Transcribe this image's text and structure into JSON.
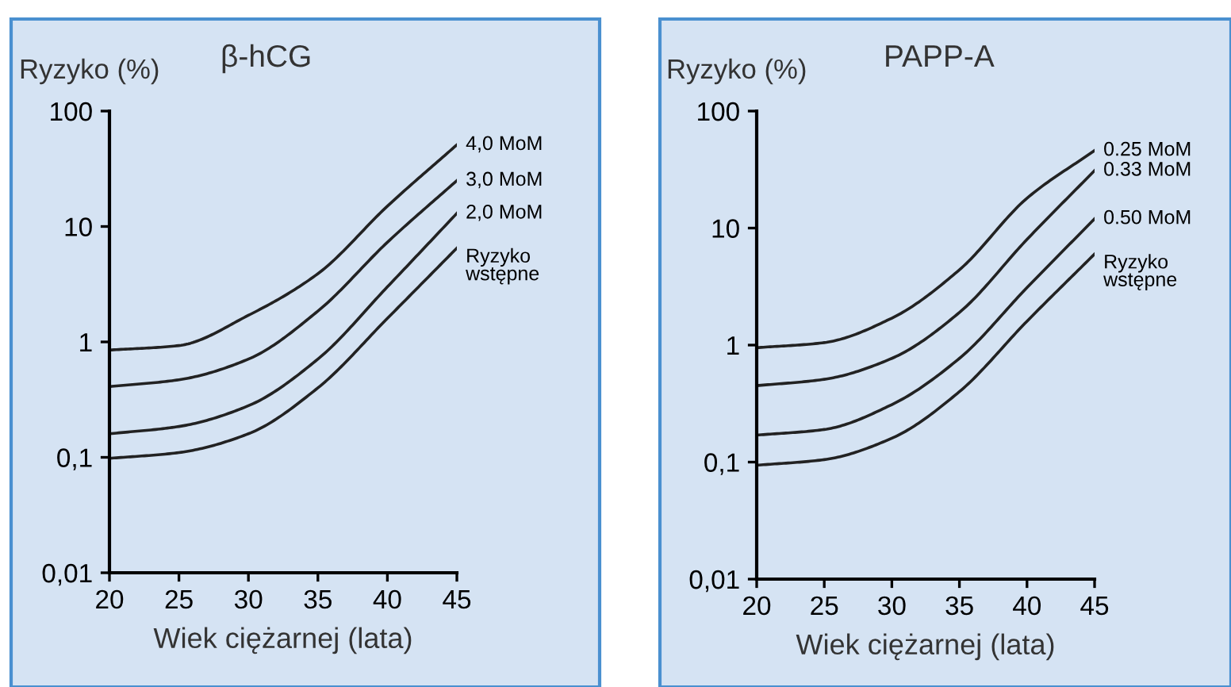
{
  "chart_data": [
    {
      "type": "line",
      "title": "β-hCG",
      "ylabel": "Ryzyko (%)",
      "xlabel": "Wiek ciężarnej (lata)",
      "log": "y",
      "grid": false,
      "xlim": [
        20,
        45
      ],
      "xticks": [
        20,
        25,
        30,
        35,
        40,
        45
      ],
      "ylim": [
        0.01,
        100
      ],
      "yticks": [
        {
          "value": 0.01,
          "label": "0,01"
        },
        {
          "value": 0.1,
          "label": "0,1"
        },
        {
          "value": 1,
          "label": "1"
        },
        {
          "value": 10,
          "label": "10"
        },
        {
          "value": 100,
          "label": "100"
        }
      ],
      "x": [
        20,
        25,
        30,
        35,
        40,
        45
      ],
      "series": [
        {
          "name": "4,0 MoM",
          "color": "#222222",
          "values": [
            0.85,
            0.93,
            1.7,
            3.9,
            15,
            51
          ]
        },
        {
          "name": "3,0 MoM",
          "color": "#222222",
          "values": [
            0.41,
            0.47,
            0.71,
            1.85,
            7.3,
            25
          ]
        },
        {
          "name": "2,0 MoM",
          "color": "#222222",
          "values": [
            0.16,
            0.185,
            0.28,
            0.71,
            3,
            13
          ]
        },
        {
          "name": "Ryzyko\nwstępne",
          "color": "#222222",
          "values": [
            0.098,
            0.11,
            0.16,
            0.4,
            1.6,
            6.5
          ]
        }
      ]
    },
    {
      "type": "line",
      "title": "PAPP-A",
      "ylabel": "Ryzyko (%)",
      "xlabel": "Wiek ciężarnej (lata)",
      "log": "y",
      "grid": false,
      "xlim": [
        20,
        45
      ],
      "xticks": [
        20,
        25,
        30,
        35,
        40,
        45
      ],
      "ylim": [
        0.01,
        100
      ],
      "yticks": [
        {
          "value": 0.01,
          "label": "0,01"
        },
        {
          "value": 0.1,
          "label": "0,1"
        },
        {
          "value": 1,
          "label": "1"
        },
        {
          "value": 10,
          "label": "10"
        },
        {
          "value": 100,
          "label": "100"
        }
      ],
      "x": [
        20,
        25,
        30,
        35,
        40,
        45
      ],
      "series": [
        {
          "name": "0.25 MoM",
          "color": "#222222",
          "values": [
            0.95,
            1.05,
            1.7,
            4.4,
            18,
            46
          ]
        },
        {
          "name": "0.33 MoM",
          "color": "#222222",
          "values": [
            0.45,
            0.51,
            0.77,
            1.9,
            8,
            31
          ]
        },
        {
          "name": "0.50 MoM",
          "color": "#222222",
          "values": [
            0.17,
            0.19,
            0.31,
            0.77,
            3.1,
            12
          ]
        },
        {
          "name": "Ryzyko\nwstępne",
          "color": "#222222",
          "values": [
            0.094,
            0.105,
            0.16,
            0.4,
            1.6,
            6
          ]
        }
      ]
    }
  ]
}
